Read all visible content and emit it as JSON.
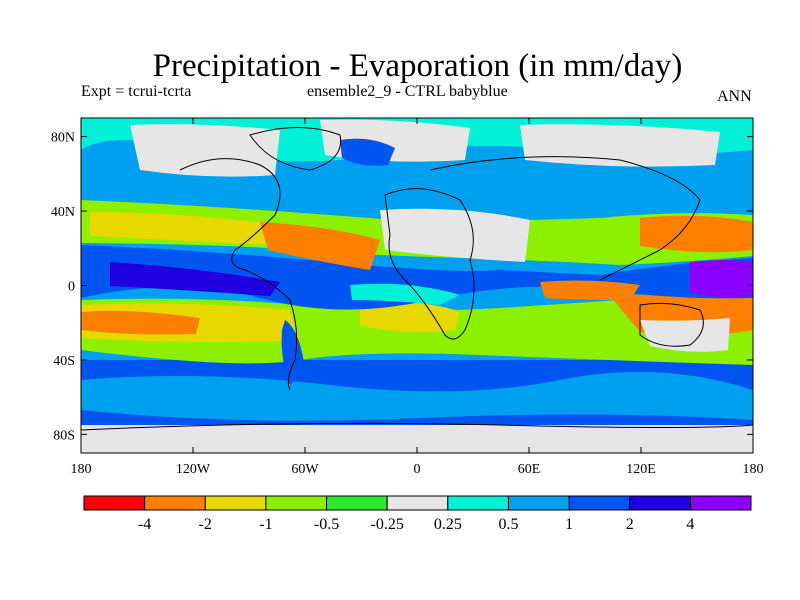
{
  "title": "Precipitation - Evaporation (in mm/day)",
  "subtitle_left": "Expt = tcrui-tcrta",
  "subtitle_center": "ensemble2_9 - CTRL babyblue",
  "subtitle_right": "ANN",
  "lat_ticks": [
    "80N",
    "40N",
    "0",
    "40S",
    "80S"
  ],
  "lon_ticks": [
    "180",
    "120W",
    "60W",
    "0",
    "60E",
    "120E",
    "180"
  ],
  "colorbar": {
    "colors": [
      "#ff0000",
      "#ff7f00",
      "#e6d800",
      "#8cf000",
      "#2ee82e",
      "#e6e6e6",
      "#00f0d8",
      "#00a0f0",
      "#0055f0",
      "#2000e0",
      "#8a00ff"
    ],
    "labels": [
      "-4",
      "-2",
      "-1",
      "-0.5",
      "-0.25",
      "0.25",
      "0.5",
      "1",
      "2",
      "4"
    ]
  }
}
